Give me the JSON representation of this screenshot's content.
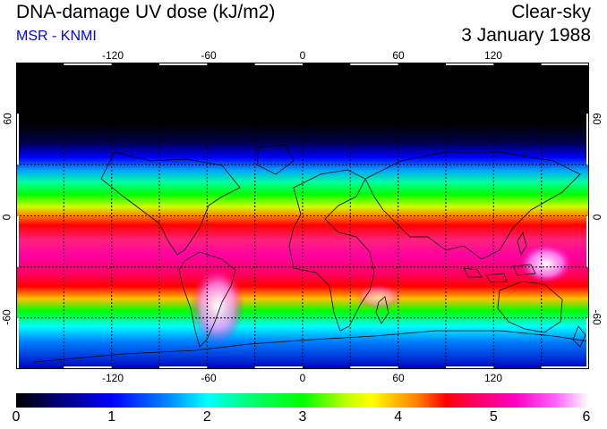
{
  "header": {
    "title": "DNA-damage UV dose (kJ/m2)",
    "subtitle": "MSR - KNMI",
    "condition": "Clear-sky",
    "date": "3 January 1988"
  },
  "map": {
    "lon_ticks": [
      "-120",
      "-60",
      "0",
      "60",
      "120"
    ],
    "lat_ticks": [
      "60",
      "0",
      "-60"
    ],
    "lon_values": [
      -120,
      -60,
      0,
      60,
      120
    ],
    "lat_values": [
      60,
      0,
      -60
    ],
    "lon_range": [
      -180,
      180
    ],
    "lat_range": [
      -90,
      90
    ],
    "grid_step_lon": 30,
    "grid_step_lat": 30
  },
  "colorbar": {
    "min": 0,
    "max": 6,
    "labels": [
      "0",
      "1",
      "2",
      "3",
      "4",
      "5",
      "6"
    ],
    "colors": [
      "#000000",
      "#0000ff",
      "#00ffff",
      "#00ff00",
      "#ffff00",
      "#ff0000",
      "#ff00c0",
      "#ffffff"
    ]
  }
}
